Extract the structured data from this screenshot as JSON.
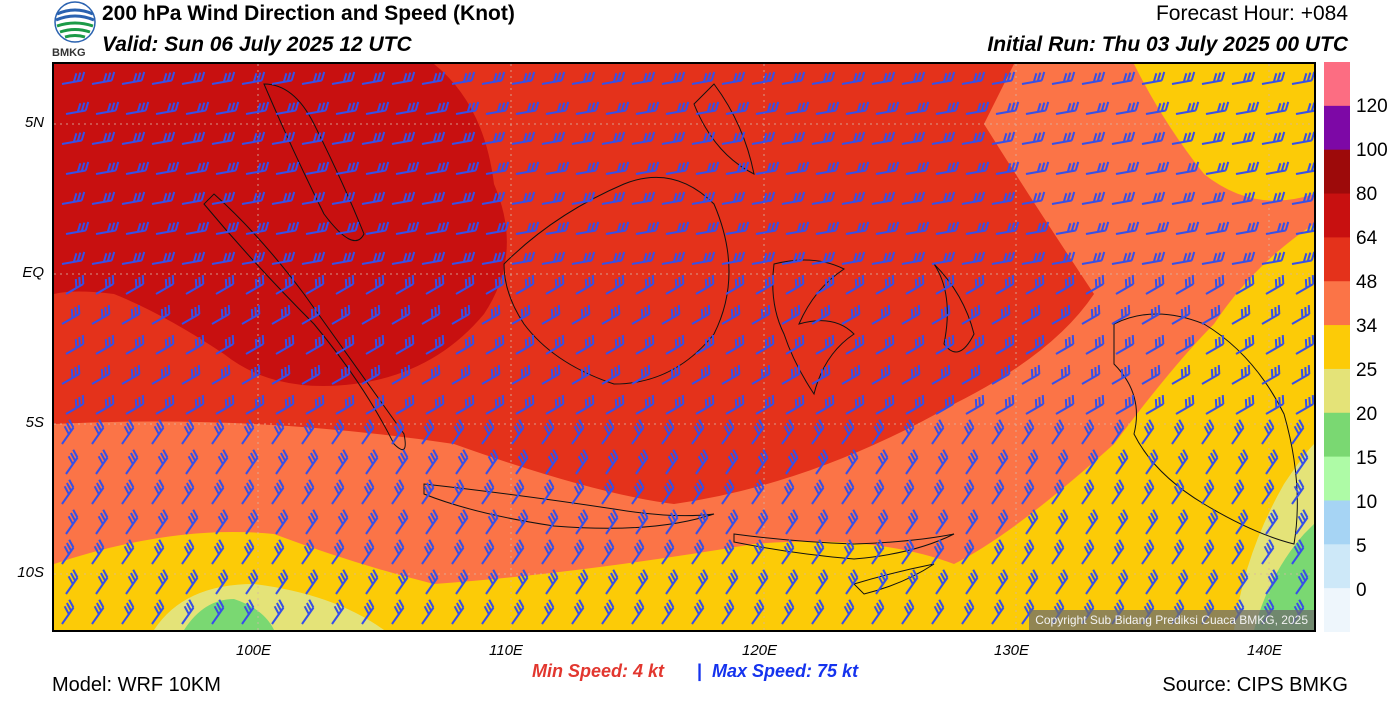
{
  "header": {
    "title": "200 hPa Wind Direction and Speed (Knot)",
    "valid": "Valid: Sun 06 July 2025 12 UTC",
    "forecast_hour": "Forecast Hour: +084",
    "initial_run": "Initial Run: Thu 03 July 2025 00 UTC"
  },
  "logo": {
    "text": "BMKG",
    "icon": "bmkg-logo-icon"
  },
  "axes": {
    "lat_labels": [
      "5N",
      "EQ",
      "5S",
      "10S"
    ],
    "lon_labels": [
      "100E",
      "110E",
      "120E",
      "130E",
      "140E"
    ]
  },
  "legend": {
    "labels": [
      "120",
      "100",
      "80",
      "64",
      "48",
      "34",
      "25",
      "20",
      "15",
      "10",
      "5",
      "0"
    ],
    "colors": [
      "#fc6d82",
      "#7d08a6",
      "#9d0a0a",
      "#c81010",
      "#e4321b",
      "#fb7447",
      "#fccb07",
      "#e4e378",
      "#7ad872",
      "#aefba6",
      "#a6d4f4",
      "#cde8f8",
      "#eef6fc"
    ]
  },
  "stats": {
    "min_speed": "Min Speed:   4 kt",
    "separator": "|",
    "max_speed": "Max Speed:  75 kt"
  },
  "footer": {
    "model": "Model: WRF 10KM",
    "source": "Source: CIPS BMKG",
    "copyright": "Copyright Sub Bidang Prediksi Cuaca BMKG, 2025"
  }
}
